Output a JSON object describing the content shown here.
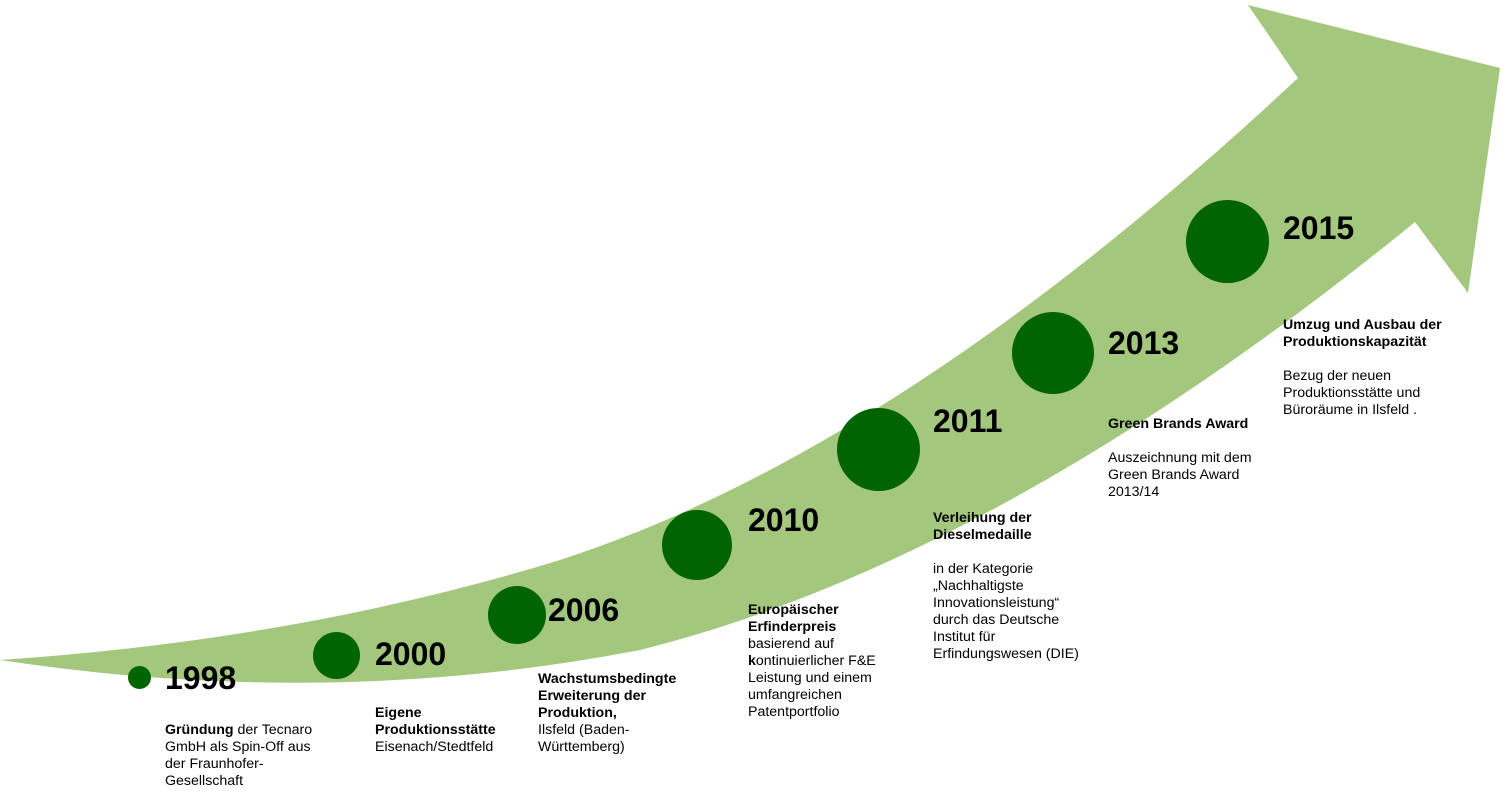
{
  "colors": {
    "arrow": "#a2c77d",
    "dot": "#006400"
  },
  "milestones": [
    {
      "year": "1998",
      "title_bold": "Gründung",
      "title_rest": " der Tecnaro GmbH als Spin-Off aus der Fraunhofer-Gesellschaft",
      "body": ""
    },
    {
      "year": "2000",
      "title_bold": "Eigene Produktionsstätte",
      "title_rest": "",
      "body": "Eisenach/Stedtfeld"
    },
    {
      "year": "2006",
      "title_bold": "Wachstumsbedingte Erweiterung der Produktion,",
      "title_rest": "",
      "body": "Ilsfeld (Baden-Württemberg)"
    },
    {
      "year": "2010",
      "title_bold": "Europäischer Erfinderpreis",
      "title_rest": "",
      "body_pre": "basierend auf ",
      "body_bold": "k",
      "body_post": "ontinuierlicher F&E Leistung und einem umfangreichen Patentportfolio"
    },
    {
      "year": "2011",
      "title_bold": "Verleihung der Dieselmedaille",
      "title_rest": "",
      "body": "in der Kategorie „Nachhaltigste Innovationsleistung“ durch das Deutsche Institut für Erfindungswesen (DIE)"
    },
    {
      "year": "2013",
      "title_bold": "Green Brands Award",
      "title_rest": "",
      "body": "Auszeichnung mit  dem Green Brands Award 2013/14"
    },
    {
      "year": "2015",
      "title_bold": "Umzug und Ausbau der Produktionskapazität",
      "title_rest": "",
      "body": "Bezug der neuen Produktionsstätte und Büroräume in Ilsfeld ."
    }
  ]
}
